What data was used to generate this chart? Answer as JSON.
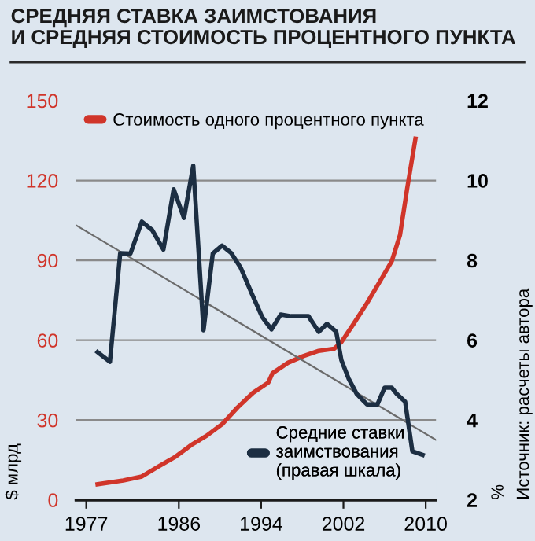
{
  "chart_data": {
    "type": "line",
    "title": "СРЕДНЯЯ СТАВКА ЗАИМСТОВАНИЯ\nИ СРЕДНЯЯ СТОИМОСТЬ ПРОЦЕНТНОГО ПУНКТА",
    "ylabel": "$ млрд",
    "y2label": "%",
    "annotations": [
      "Источник: расчеты автора"
    ],
    "xlim": [
      1976,
      2011
    ],
    "xticks": [
      1977,
      1986,
      1994,
      2002,
      2010
    ],
    "ylim": [
      0,
      150
    ],
    "yticks": [
      0,
      30,
      60,
      90,
      120,
      150
    ],
    "y2lim": [
      2,
      12
    ],
    "y2ticks": [
      2,
      4,
      6,
      8,
      10,
      12
    ],
    "grid": "y",
    "legend": "top left",
    "series": [
      {
        "name": "Стоимость одного процентного пункта",
        "color": "#d0352a",
        "x": [
          1978.1,
          1980.6,
          1982.4,
          1984.1,
          1985.7,
          1987.2,
          1988.7,
          1990.2,
          1991.7,
          1993.2,
          1994.7,
          1995.1,
          1996.6,
          1998.1,
          1999.6,
          2001.1,
          2001.8,
          2003.0,
          2004.3,
          2005.5,
          2006.7,
          2007.5,
          2008.2,
          2009.0
        ],
        "values": [
          5.9,
          7.3,
          8.8,
          12.7,
          16.3,
          20.6,
          24.1,
          28.4,
          34.7,
          40.2,
          44.1,
          47.6,
          51.5,
          54.0,
          56.0,
          56.8,
          59.3,
          66.2,
          74.0,
          81.8,
          89.7,
          99.5,
          117.1,
          135.7
        ]
      },
      {
        "name": "Средние ставки\nзаимствования\n(правая шкала)",
        "color": "#1c2e42",
        "axis": "y2",
        "x": [
          1978.1,
          1979.3,
          1980.3,
          1981.3,
          1982.4,
          1983.4,
          1984.5,
          1985.5,
          1986.5,
          1987.4,
          1988.4,
          1989.3,
          1990.2,
          1991.1,
          1992.0,
          1993.1,
          1994.1,
          1995.0,
          1995.9,
          1996.9,
          1998.6,
          1999.6,
          2000.4,
          2001.3,
          2001.8,
          2002.5,
          2003.3,
          2004.3,
          2005.3,
          2006.0,
          2006.7,
          2007.2,
          2008.0,
          2008.7,
          2009.7
        ],
        "values": [
          5.7,
          5.46,
          8.18,
          8.17,
          8.97,
          8.76,
          8.27,
          9.78,
          9.06,
          10.37,
          6.25,
          8.17,
          8.37,
          8.18,
          7.82,
          7.16,
          6.58,
          6.27,
          6.64,
          6.6,
          6.6,
          6.21,
          6.41,
          6.21,
          5.5,
          5.04,
          4.65,
          4.39,
          4.39,
          4.81,
          4.81,
          4.65,
          4.46,
          3.22,
          3.13
        ]
      },
      {
        "color": "#6b6b6b",
        "axis": "y2",
        "x": [
          1976,
          2011
        ],
        "values": [
          8.88,
          3.5
        ]
      }
    ]
  }
}
